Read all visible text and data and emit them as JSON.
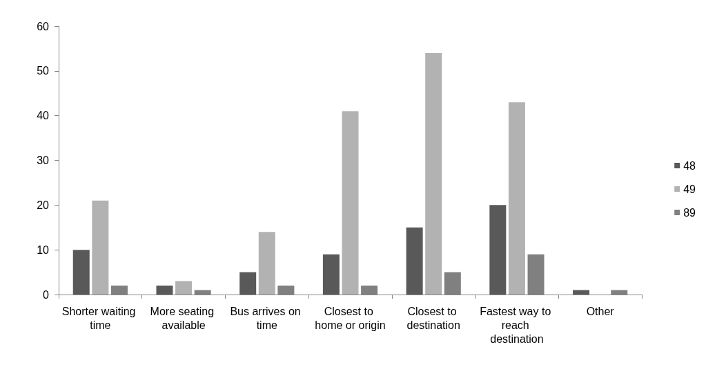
{
  "chart_data": {
    "type": "bar",
    "categories": [
      "Shorter waiting time",
      "More seating available",
      "Bus arrives on time",
      "Closest to home or origin",
      "Closest to destination",
      "Fastest way to reach destination",
      "Other"
    ],
    "series": [
      {
        "name": "48",
        "color": "#595959",
        "values": [
          10,
          2,
          5,
          9,
          15,
          20,
          1
        ]
      },
      {
        "name": "49",
        "color": "#b2b2b2",
        "values": [
          21,
          3,
          14,
          41,
          54,
          43,
          0
        ]
      },
      {
        "name": "89",
        "color": "#808080",
        "values": [
          2,
          1,
          2,
          2,
          5,
          9,
          1
        ]
      }
    ],
    "ylim": [
      0,
      60
    ],
    "yticks": [
      0,
      10,
      20,
      30,
      40,
      50,
      60
    ],
    "grid": false,
    "legend": "right"
  }
}
